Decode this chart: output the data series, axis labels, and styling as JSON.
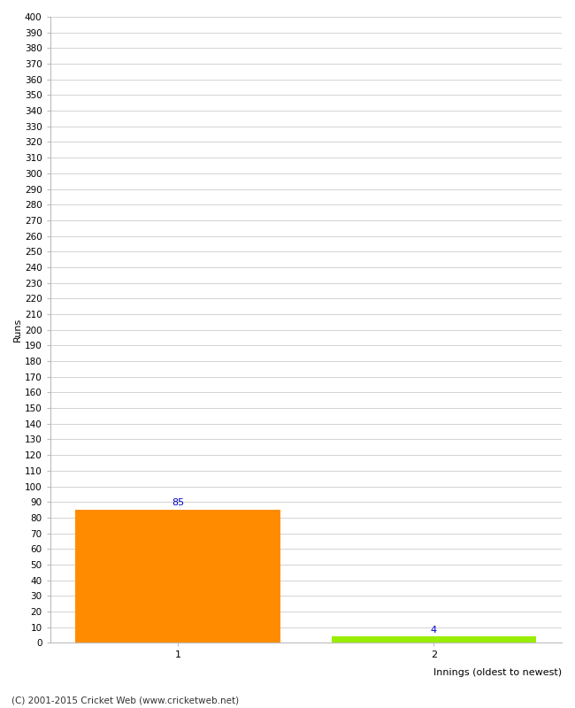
{
  "categories": [
    "1",
    "2"
  ],
  "values": [
    85,
    4
  ],
  "bar_colors": [
    "#FF8C00",
    "#99EE00"
  ],
  "ylabel": "Runs",
  "xlabel": "Innings (oldest to newest)",
  "ylim": [
    0,
    400
  ],
  "yticks": [
    0,
    10,
    20,
    30,
    40,
    50,
    60,
    70,
    80,
    90,
    100,
    110,
    120,
    130,
    140,
    150,
    160,
    170,
    180,
    190,
    200,
    210,
    220,
    230,
    240,
    250,
    260,
    270,
    280,
    290,
    300,
    310,
    320,
    330,
    340,
    350,
    360,
    370,
    380,
    390,
    400
  ],
  "footer": "(C) 2001-2015 Cricket Web (www.cricketweb.net)",
  "background_color": "#FFFFFF",
  "grid_color": "#CCCCCC",
  "label_color": "#0000CC",
  "bar_width": 0.8,
  "figsize": [
    6.5,
    8.0
  ],
  "dpi": 100
}
